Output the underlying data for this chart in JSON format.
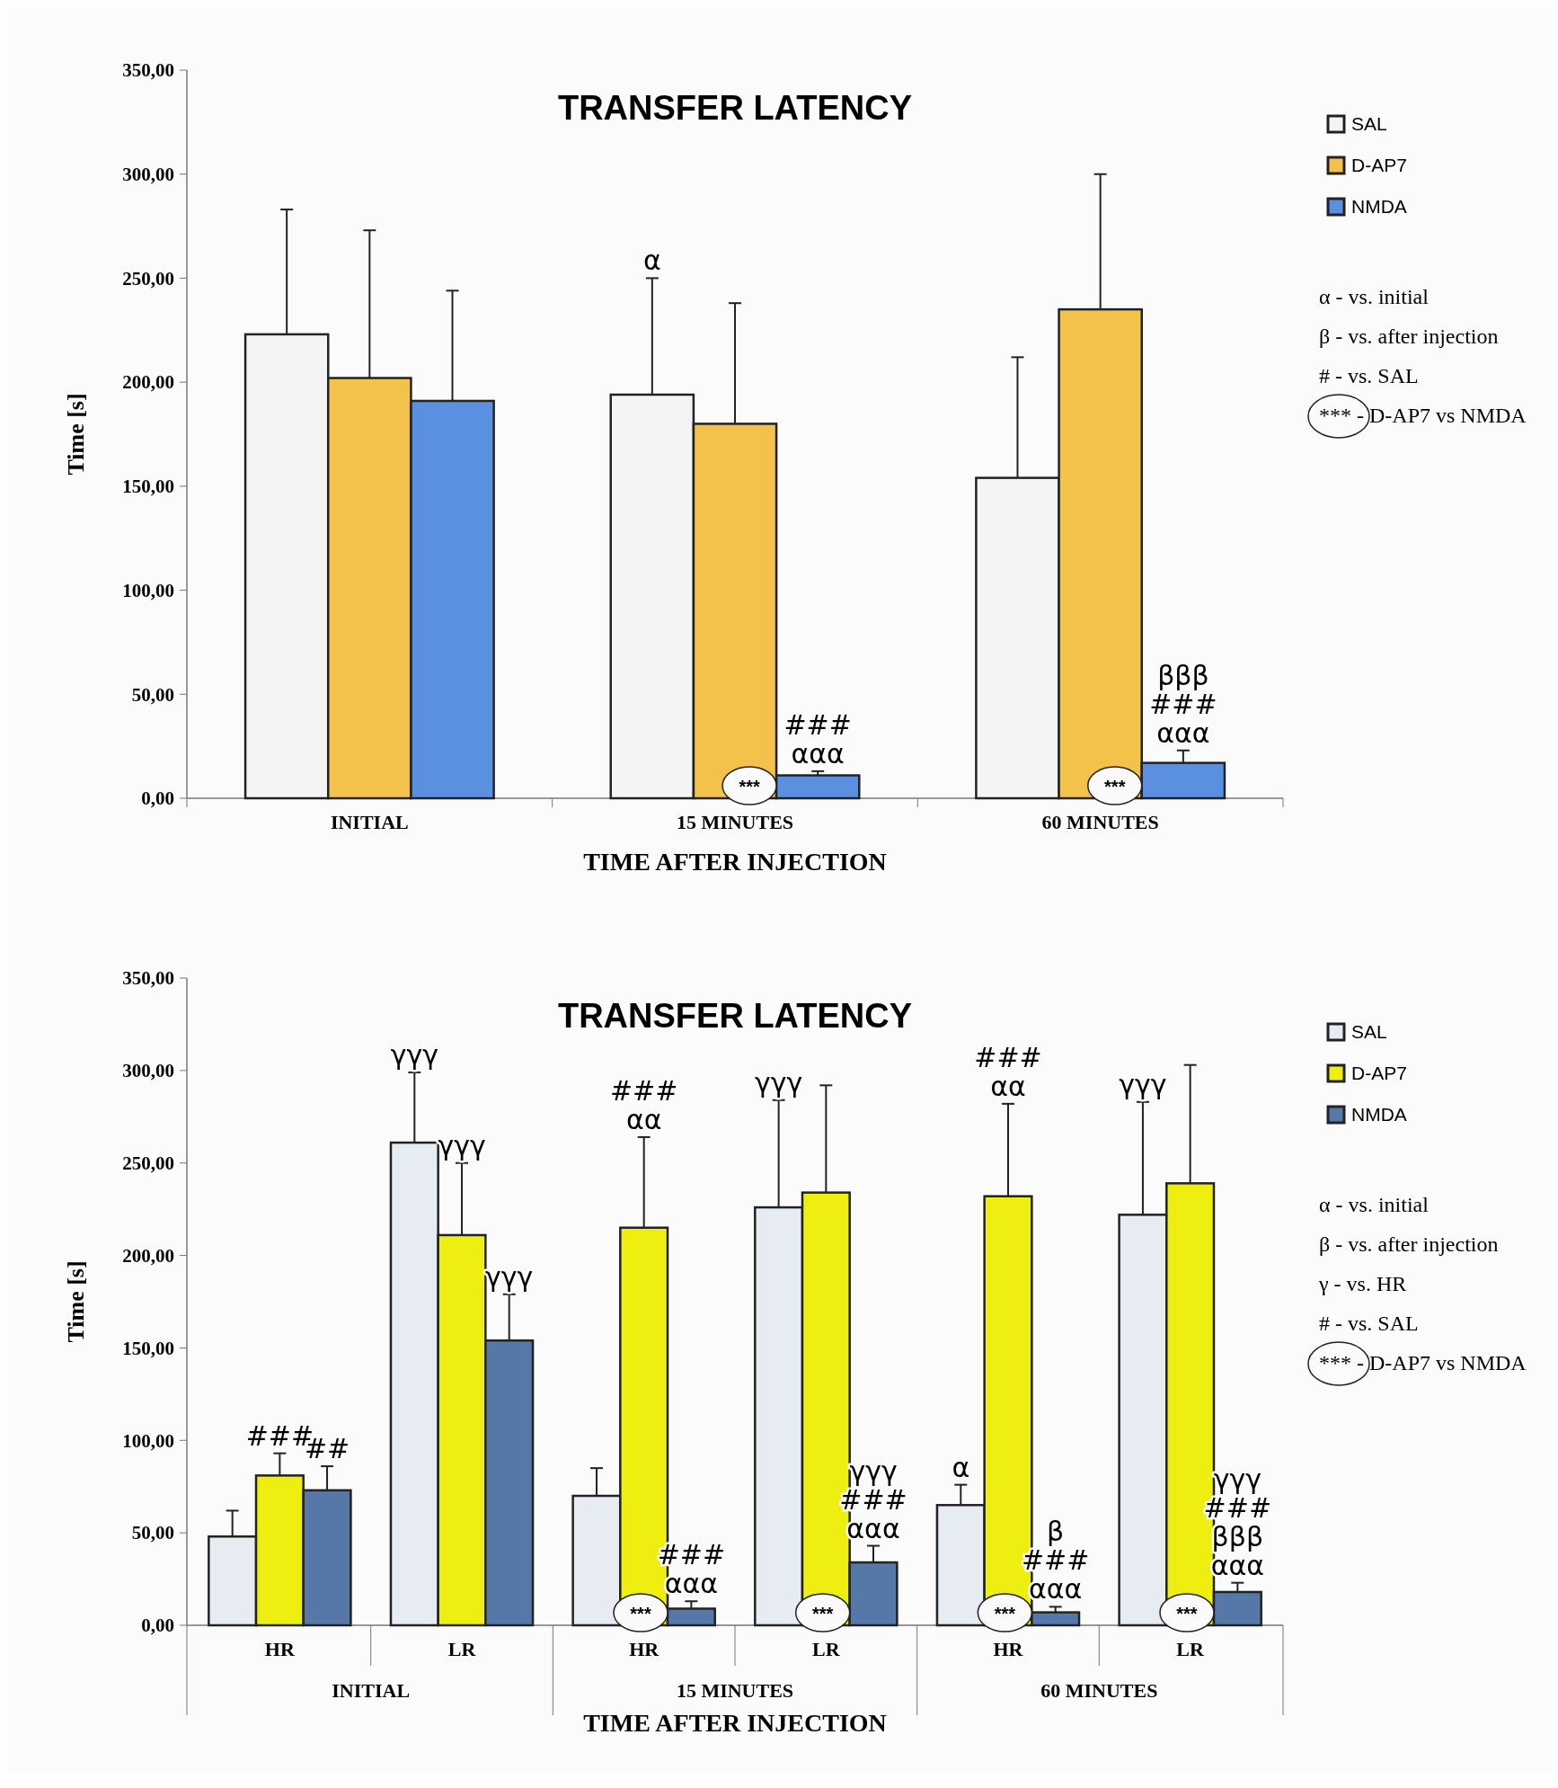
{
  "chart_data": [
    {
      "type": "bar",
      "title": "TRANSFER LATENCY",
      "xlabel": "TIME AFTER INJECTION",
      "ylabel": "Time [s]",
      "categories": [
        "INITIAL",
        "15 MINUTES",
        "60 MINUTES"
      ],
      "series": [
        {
          "name": "SAL",
          "color": "#f4f4f4",
          "values": [
            223,
            194,
            154
          ],
          "errors": [
            [
              223,
              283
            ],
            [
              194,
              250
            ],
            [
              154,
              212
            ]
          ]
        },
        {
          "name": "D-AP7",
          "color": "#f3c24a",
          "values": [
            202,
            180,
            235
          ],
          "errors": [
            [
              202,
              273
            ],
            [
              180,
              238
            ],
            [
              235,
              300
            ]
          ]
        },
        {
          "name": "NMDA",
          "color": "#5b8fe0",
          "values": [
            191,
            11,
            17
          ],
          "errors": [
            [
              191,
              244
            ],
            [
              11,
              13
            ],
            [
              17,
              23
            ]
          ]
        }
      ],
      "ylim": [
        0,
        350
      ],
      "yticks": [
        {
          "value": 0,
          "label": "0,00"
        },
        {
          "value": 50,
          "label": "50,00"
        },
        {
          "value": 100,
          "label": "100,00"
        },
        {
          "value": 150,
          "label": "150,00"
        },
        {
          "value": 200,
          "label": "200,00"
        },
        {
          "value": 250,
          "label": "250,00"
        },
        {
          "value": 300,
          "label": "300,00"
        },
        {
          "value": 350,
          "label": "350,00"
        }
      ],
      "legend": "right",
      "annotations": [
        "α",
        "###\nααα",
        "***",
        "βββ\n###\nααα",
        "***",
        "α - vs. initial",
        "β - vs. after injection",
        "# - vs. SAL",
        "*** - D-AP7 vs NMDA"
      ]
    },
    {
      "type": "bar",
      "title": "TRANSFER LATENCY",
      "xlabel": "TIME AFTER INJECTION",
      "ylabel": "Time [s]",
      "categories": [
        "HR",
        "LR",
        "HR",
        "LR",
        "HR",
        "LR"
      ],
      "series": [
        {
          "name": "SAL",
          "color": "#e6ecf2",
          "values": [
            48,
            261,
            70,
            226,
            65,
            222
          ],
          "errors": [
            [
              48,
              62
            ],
            [
              261,
              299
            ],
            [
              70,
              85
            ],
            [
              226,
              284
            ],
            [
              65,
              76
            ],
            [
              222,
              283
            ]
          ]
        },
        {
          "name": "D-AP7",
          "color": "#eeee10",
          "values": [
            81,
            211,
            215,
            234,
            232,
            239
          ],
          "errors": [
            [
              81,
              93
            ],
            [
              211,
              250
            ],
            [
              215,
              264
            ],
            [
              234,
              292
            ],
            [
              232,
              282
            ],
            [
              239,
              303
            ]
          ]
        },
        {
          "name": "NMDA",
          "color": "#5578a8",
          "values": [
            73,
            154,
            9,
            34,
            7,
            18
          ],
          "errors": [
            [
              73,
              86
            ],
            [
              154,
              179
            ],
            [
              9,
              13
            ],
            [
              34,
              43
            ],
            [
              7,
              10
            ],
            [
              18,
              23
            ]
          ]
        }
      ],
      "ylim": [
        0,
        350
      ],
      "yticks": [
        {
          "value": 0,
          "label": "0,00"
        },
        {
          "value": 50,
          "label": "50,00"
        },
        {
          "value": 100,
          "label": "100,00"
        },
        {
          "value": 150,
          "label": "150,00"
        },
        {
          "value": 200,
          "label": "200,00"
        },
        {
          "value": 250,
          "label": "250,00"
        },
        {
          "value": 300,
          "label": "300,00"
        },
        {
          "value": 350,
          "label": "350,00"
        }
      ],
      "legend": "right",
      "annotations": [
        "INITIAL",
        "15 MINUTES",
        "60 MINUTES",
        "###",
        "##",
        "γγγ",
        "γγγ",
        "γγγ",
        "###\nαα",
        "###\nααα",
        "***",
        "γγγ",
        "γγγ\n###\nααα",
        "***",
        "α",
        "###\nαα",
        "β\n###\nααα",
        "***",
        "γγγ",
        "γγγ\n###\nβββ\nααα",
        "***",
        "α - vs. initial",
        "β - vs. after injection",
        "γ - vs. HR",
        "# - vs. SAL",
        "*** - D-AP7 vs NMDA"
      ]
    }
  ]
}
